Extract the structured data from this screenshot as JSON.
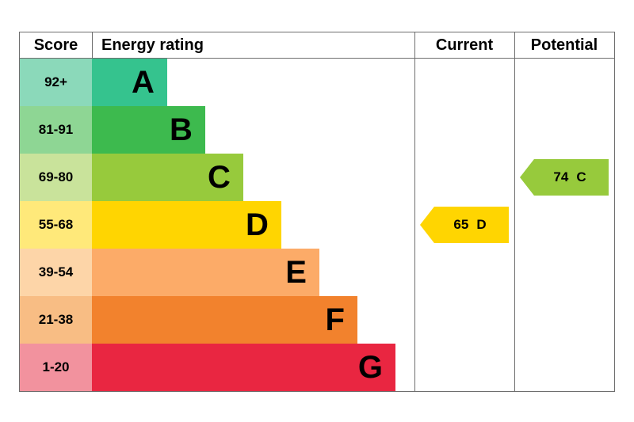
{
  "chart_data": {
    "type": "bar",
    "subtype": "epc-energy-rating",
    "columns": [
      "Score",
      "Energy rating",
      "Current",
      "Potential"
    ],
    "bands": [
      {
        "score": "92+",
        "letter": "A",
        "color": "#35c38e",
        "score_bg": "#8bd9ba",
        "width_pct": 23.3
      },
      {
        "score": "81-91",
        "letter": "B",
        "color": "#3dba4e",
        "score_bg": "#8ed694",
        "width_pct": 35.1
      },
      {
        "score": "69-80",
        "letter": "C",
        "color": "#97ca3c",
        "score_bg": "#c9e39b",
        "width_pct": 46.9
      },
      {
        "score": "55-68",
        "letter": "D",
        "color": "#ffd501",
        "score_bg": "#ffe97a",
        "width_pct": 58.7
      },
      {
        "score": "39-54",
        "letter": "E",
        "color": "#fcab68",
        "score_bg": "#fdd5a8",
        "width_pct": 70.5
      },
      {
        "score": "21-38",
        "letter": "F",
        "color": "#f2822d",
        "score_bg": "#f8bd84",
        "width_pct": 82.3
      },
      {
        "score": "1-20",
        "letter": "G",
        "color": "#e92641",
        "score_bg": "#f2929e",
        "width_pct": 94.1
      }
    ],
    "markers": {
      "current": {
        "value": "65",
        "letter": "D",
        "color": "#ffd501"
      },
      "potential": {
        "value": "74",
        "letter": "C",
        "color": "#97ca3c"
      }
    }
  }
}
